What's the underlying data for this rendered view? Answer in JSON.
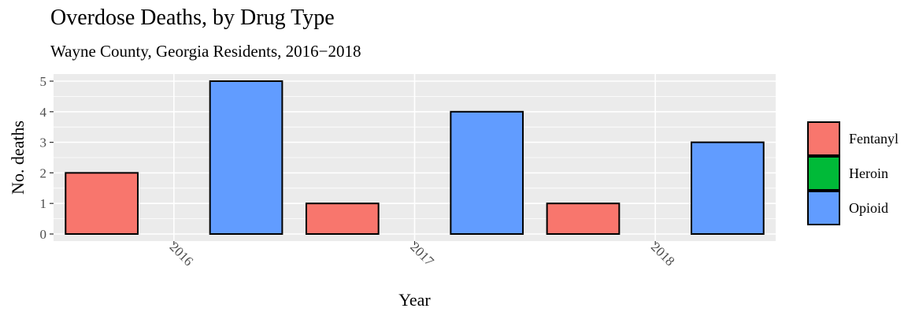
{
  "chart_data": {
    "type": "bar",
    "title": "Overdose Deaths, by Drug Type",
    "subtitle": "Wayne County, Georgia Residents, 2016−2018",
    "xlabel": "Year",
    "ylabel": "No. deaths",
    "categories": [
      "2016",
      "2017",
      "2018"
    ],
    "series": [
      {
        "name": "Fentanyl",
        "color": "#F8766D",
        "values": [
          2,
          1,
          1
        ]
      },
      {
        "name": "Heroin",
        "color": "#00BA38",
        "values": [
          0,
          0,
          0
        ]
      },
      {
        "name": "Opioid",
        "color": "#619CFF",
        "values": [
          5,
          4,
          3
        ]
      }
    ],
    "ylim": [
      0,
      5
    ],
    "yticks": [
      "0",
      "1",
      "2",
      "3",
      "4",
      "5"
    ],
    "grid": true,
    "legend_position": "right",
    "panel_background": "#EBEBEB"
  }
}
